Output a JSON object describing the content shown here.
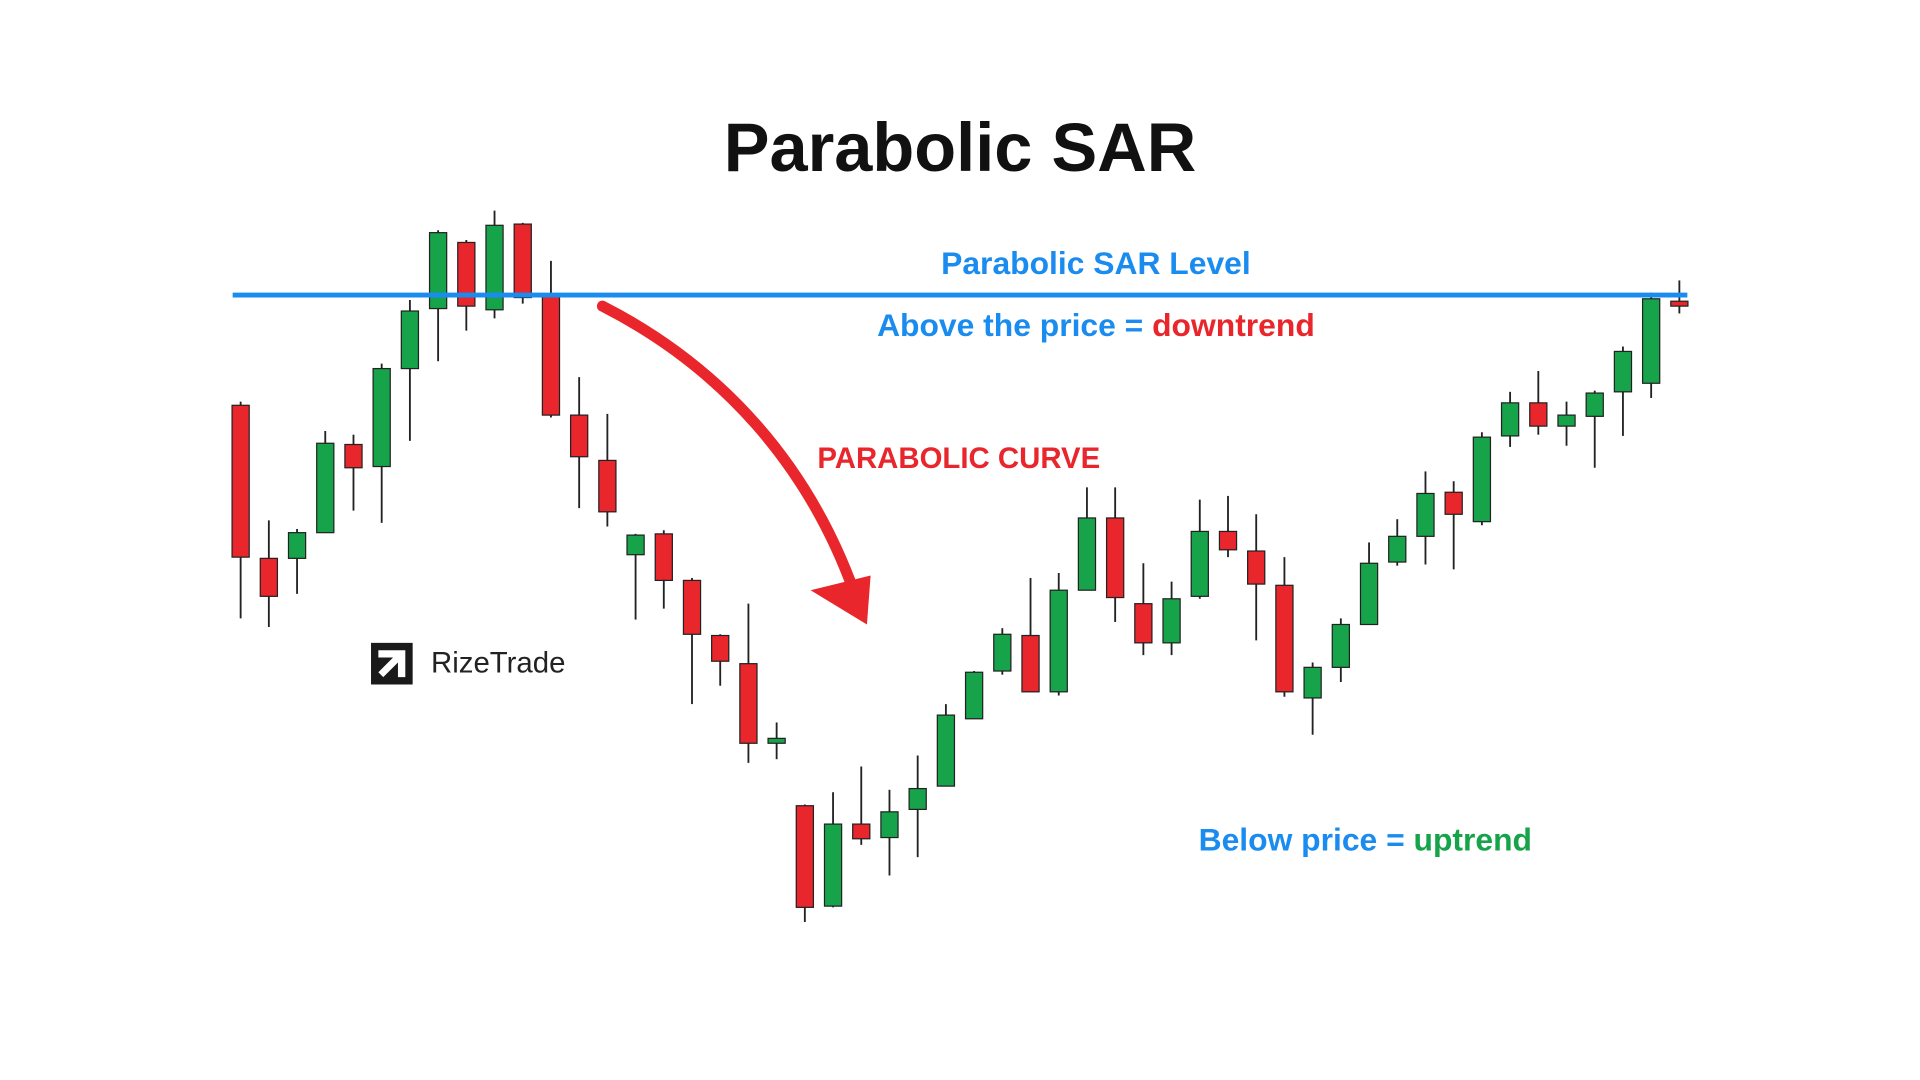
{
  "chart_data": {
    "type": "candlestick",
    "title": "Parabolic SAR",
    "sar_label": "Parabolic SAR Level",
    "above_text": "Above the price = ",
    "above_trend": "downtrend",
    "curve_label": "PARABOLIC CURVE",
    "below_text": "Below price = ",
    "below_trend": "uptrend",
    "brand": "RizeTrade",
    "up_color": "#16a34a",
    "down_color": "#e8262b",
    "sar_color": "#1a8cf0",
    "sar_level": 539,
    "ylim": [
      0,
      600
    ],
    "open": [
      449,
      324,
      324,
      345,
      417,
      399,
      479,
      528,
      582,
      527,
      597,
      539,
      441,
      404,
      327,
      344,
      306,
      261,
      238,
      173,
      122,
      40,
      107,
      96,
      119,
      138,
      193,
      232,
      261,
      215,
      298,
      357,
      287,
      255,
      293,
      346,
      330,
      302,
      210,
      235,
      270,
      321,
      342,
      378,
      354,
      424,
      451,
      432,
      440,
      460,
      467,
      534
    ],
    "high": [
      452,
      355,
      348,
      428,
      425,
      483,
      535,
      592,
      584,
      608,
      598,
      567,
      472,
      442,
      344,
      347,
      308,
      262,
      287,
      190,
      123,
      133,
      154,
      135,
      163,
      205,
      232,
      267,
      308,
      312,
      382,
      382,
      320,
      305,
      372,
      375,
      360,
      325,
      239,
      275,
      337,
      356,
      395,
      387,
      427,
      460,
      477,
      452,
      461,
      497,
      541,
      551
    ],
    "low": [
      275,
      268,
      295,
      345,
      363,
      353,
      420,
      485,
      510,
      520,
      532,
      439,
      365,
      350,
      274,
      283,
      205,
      220,
      157,
      160,
      27,
      39,
      90,
      65,
      80,
      138,
      193,
      229,
      215,
      212,
      298,
      272,
      245,
      245,
      291,
      325,
      257,
      211,
      180,
      223,
      270,
      318,
      319,
      315,
      351,
      415,
      425,
      416,
      398,
      424,
      455,
      524
    ],
    "close": [
      325,
      293,
      345,
      418,
      398,
      479,
      526,
      590,
      530,
      596,
      537,
      441,
      407,
      362,
      343,
      306,
      262,
      240,
      173,
      177,
      39,
      107,
      95,
      117,
      136,
      196,
      231,
      262,
      215,
      298,
      357,
      292,
      255,
      291,
      346,
      331,
      303,
      215,
      235,
      270,
      320,
      342,
      377,
      360,
      423,
      451,
      432,
      441,
      459,
      493,
      536,
      530
    ]
  }
}
